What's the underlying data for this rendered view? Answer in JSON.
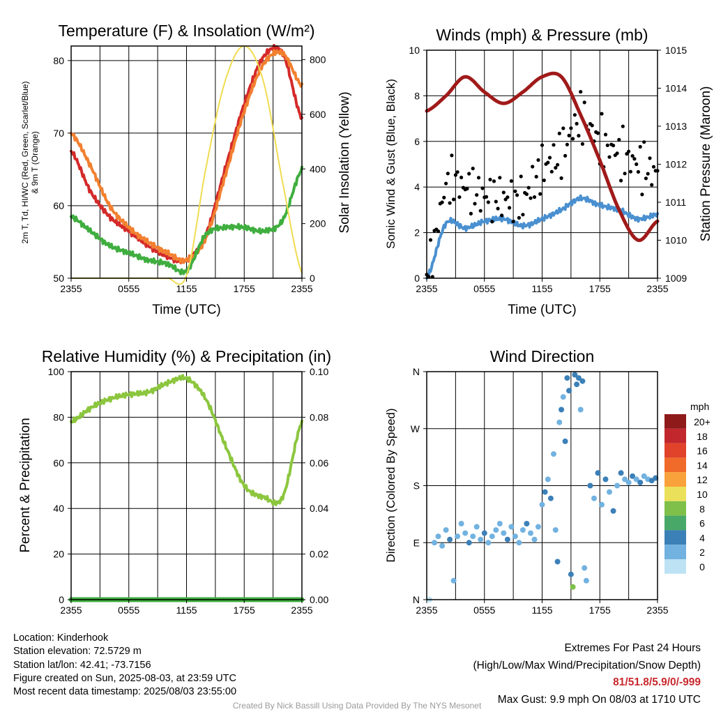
{
  "chart_data": [
    {
      "type": "line",
      "title": "Temperature (F) & Insolation (W/m²)",
      "xlabel": "Time (UTC)",
      "ylabel": "2m T, Td, HI/WC (Red, Green, Scarlet/Blue) & 9m T (Orange)",
      "y2label": "Solar Insolation (Yellow)",
      "x_ticks": [
        "2355",
        "0555",
        "1155",
        "1755",
        "2355"
      ],
      "x": [
        0,
        2,
        4,
        6,
        8,
        10,
        12,
        14,
        16,
        18,
        20,
        22,
        24
      ],
      "ylim": [
        50,
        82
      ],
      "y_ticks": [
        50,
        60,
        70,
        80
      ],
      "y2lim": [
        0,
        850
      ],
      "y2_ticks": [
        0,
        200,
        400,
        600,
        800
      ],
      "grid": true,
      "series": [
        {
          "color": "#d42a2a",
          "axis": "left",
          "values": [
            67.5,
            62,
            58.5,
            56.5,
            54.5,
            53,
            52.5,
            56,
            65,
            74,
            80.5,
            81,
            72
          ]
        },
        {
          "color": "#f28030",
          "axis": "left",
          "values": [
            70,
            65.5,
            60,
            57,
            55,
            53.5,
            52.5,
            55.5,
            64,
            73,
            79.5,
            81,
            76.5
          ]
        },
        {
          "color": "#3fae3f",
          "axis": "left",
          "values": [
            58.5,
            56.5,
            54.5,
            53.5,
            52.5,
            52,
            51,
            56,
            57,
            57,
            56.5,
            58,
            65
          ]
        },
        {
          "color": "#f0dc50",
          "axis": "right",
          "values": [
            0,
            0,
            0,
            0,
            0,
            0,
            10,
            400,
            720,
            850,
            720,
            350,
            20
          ]
        }
      ]
    },
    {
      "type": "line",
      "title": "Winds (mph) & Pressure (mb)",
      "xlabel": "Time (UTC)",
      "ylabel": "Sonic Wind & Gust (Blue, Black)",
      "y2label": "Station Pressure (Maroon)",
      "x_ticks": [
        "2355",
        "0555",
        "1155",
        "1755",
        "2355"
      ],
      "x": [
        0,
        2,
        4,
        6,
        8,
        10,
        12,
        14,
        16,
        18,
        20,
        22,
        24
      ],
      "ylim": [
        0,
        10
      ],
      "y_ticks": [
        0,
        2,
        4,
        6,
        8,
        10
      ],
      "y2lim": [
        1009,
        1015
      ],
      "y2_ticks": [
        1009,
        1010,
        1011,
        1012,
        1013,
        1014,
        1015
      ],
      "grid": true,
      "series": [
        {
          "color": "#4a90d0",
          "axis": "left",
          "values": [
            0,
            2.4,
            2.2,
            2.5,
            2.6,
            2.3,
            2.6,
            3.0,
            3.5,
            3.2,
            3.0,
            2.6,
            2.8
          ]
        },
        {
          "color": "#000000",
          "axis": "left",
          "style": "points",
          "values": [
            0,
            4.0,
            4.0,
            3.6,
            3.5,
            3.5,
            4.8,
            5.5,
            7.0,
            6.0,
            5.5,
            5.0,
            4.6
          ]
        },
        {
          "color": "#a01a1a",
          "axis": "right",
          "values": [
            1013.4,
            1013.8,
            1014.3,
            1013.9,
            1013.6,
            1013.9,
            1014.3,
            1014.3,
            1013.3,
            1012.1,
            1010.8,
            1010.0,
            1010.5
          ]
        }
      ]
    },
    {
      "type": "line",
      "title": "Relative Humidity (%) & Precipitation (in)",
      "xlabel": "",
      "ylabel": "Percent & Precipitation",
      "x_ticks": [
        "2355",
        "0555",
        "1155",
        "1755",
        "2355"
      ],
      "x": [
        0,
        2,
        4,
        6,
        8,
        10,
        12,
        14,
        16,
        18,
        20,
        22,
        24
      ],
      "ylim": [
        0,
        100
      ],
      "y_ticks": [
        0,
        20,
        40,
        60,
        80,
        100
      ],
      "y2lim": [
        0,
        0.1
      ],
      "y2_ticks": [
        "0.00",
        "0.02",
        "0.04",
        "0.06",
        "0.08",
        "0.10"
      ],
      "grid": true,
      "series": [
        {
          "color": "#8cc63e",
          "axis": "left",
          "values": [
            78,
            84,
            88,
            90,
            91,
            95,
            97,
            88,
            68,
            50,
            45,
            45,
            78
          ]
        },
        {
          "color": "#3fae3f",
          "axis": "right",
          "values": [
            0,
            0,
            0,
            0,
            0,
            0,
            0,
            0,
            0,
            0,
            0,
            0,
            0
          ]
        }
      ]
    },
    {
      "type": "scatter",
      "title": "Wind Direction",
      "xlabel": "",
      "ylabel": "Direction (Colored By Speed)",
      "x_ticks": [
        "2355",
        "0555",
        "1155",
        "1755",
        "2355"
      ],
      "y_ticks": [
        "N",
        "E",
        "S",
        "W",
        "N"
      ],
      "ylim": [
        0,
        360
      ],
      "grid": true,
      "legend": {
        "title": "mph",
        "placement": "right",
        "labels": [
          "20+",
          "18",
          "16",
          "14",
          "12",
          "10",
          "8",
          "6",
          "4",
          "2",
          "0"
        ],
        "colors": [
          "#8e1a1a",
          "#c2272d",
          "#e0422a",
          "#f06b2a",
          "#f9a13a",
          "#ebe05a",
          "#7fc04a",
          "#48a868",
          "#3c80b8",
          "#72b2e0",
          "#bde2f4"
        ]
      },
      "points": [
        {
          "x": 0.3,
          "dir": 0,
          "speed": 0.5
        },
        {
          "x": 0.8,
          "dir": 90,
          "speed": 2
        },
        {
          "x": 1.2,
          "dir": 100,
          "speed": 1
        },
        {
          "x": 1.6,
          "dir": 85,
          "speed": 2
        },
        {
          "x": 2.0,
          "dir": 110,
          "speed": 2
        },
        {
          "x": 2.4,
          "dir": 95,
          "speed": 3
        },
        {
          "x": 2.8,
          "dir": 30,
          "speed": 1
        },
        {
          "x": 3.2,
          "dir": 100,
          "speed": 2
        },
        {
          "x": 3.6,
          "dir": 120,
          "speed": 2
        },
        {
          "x": 4.0,
          "dir": 105,
          "speed": 2
        },
        {
          "x": 4.4,
          "dir": 90,
          "speed": 3
        },
        {
          "x": 4.8,
          "dir": 100,
          "speed": 2
        },
        {
          "x": 5.2,
          "dir": 115,
          "speed": 2
        },
        {
          "x": 5.6,
          "dir": 95,
          "speed": 2
        },
        {
          "x": 6.0,
          "dir": 105,
          "speed": 3
        },
        {
          "x": 6.4,
          "dir": 90,
          "speed": 2
        },
        {
          "x": 6.8,
          "dir": 100,
          "speed": 2
        },
        {
          "x": 7.2,
          "dir": 110,
          "speed": 2
        },
        {
          "x": 7.6,
          "dir": 120,
          "speed": 2
        },
        {
          "x": 8.0,
          "dir": 105,
          "speed": 2
        },
        {
          "x": 8.4,
          "dir": 95,
          "speed": 3
        },
        {
          "x": 8.8,
          "dir": 115,
          "speed": 2
        },
        {
          "x": 9.2,
          "dir": 100,
          "speed": 2
        },
        {
          "x": 9.6,
          "dir": 90,
          "speed": 2
        },
        {
          "x": 10.0,
          "dir": 110,
          "speed": 2
        },
        {
          "x": 10.4,
          "dir": 120,
          "speed": 3
        },
        {
          "x": 10.8,
          "dir": 105,
          "speed": 2
        },
        {
          "x": 11.2,
          "dir": 95,
          "speed": 2
        },
        {
          "x": 11.6,
          "dir": 115,
          "speed": 2
        },
        {
          "x": 12.0,
          "dir": 150,
          "speed": 2
        },
        {
          "x": 12.3,
          "dir": 170,
          "speed": 3
        },
        {
          "x": 12.6,
          "dir": 190,
          "speed": 2
        },
        {
          "x": 12.9,
          "dir": 160,
          "speed": 4
        },
        {
          "x": 13.2,
          "dir": 230,
          "speed": 2
        },
        {
          "x": 13.4,
          "dir": 110,
          "speed": 2
        },
        {
          "x": 13.6,
          "dir": 60,
          "speed": 3
        },
        {
          "x": 13.8,
          "dir": 280,
          "speed": 2
        },
        {
          "x": 14.0,
          "dir": 300,
          "speed": 3
        },
        {
          "x": 14.2,
          "dir": 320,
          "speed": 2
        },
        {
          "x": 14.4,
          "dir": 250,
          "speed": 3
        },
        {
          "x": 14.6,
          "dir": 350,
          "speed": 3
        },
        {
          "x": 14.8,
          "dir": 330,
          "speed": 4
        },
        {
          "x": 15.0,
          "dir": 40,
          "speed": 3
        },
        {
          "x": 15.2,
          "dir": 20,
          "speed": 7
        },
        {
          "x": 15.4,
          "dir": 355,
          "speed": 4
        },
        {
          "x": 15.6,
          "dir": 340,
          "speed": 3
        },
        {
          "x": 15.8,
          "dir": 350,
          "speed": 3
        },
        {
          "x": 16.0,
          "dir": 300,
          "speed": 2
        },
        {
          "x": 16.2,
          "dir": 345,
          "speed": 3
        },
        {
          "x": 16.4,
          "dir": 50,
          "speed": 2
        },
        {
          "x": 16.6,
          "dir": 30,
          "speed": 1
        },
        {
          "x": 17.0,
          "dir": 180,
          "speed": 3
        },
        {
          "x": 17.4,
          "dir": 160,
          "speed": 2
        },
        {
          "x": 17.8,
          "dir": 200,
          "speed": 3
        },
        {
          "x": 18.2,
          "dir": 150,
          "speed": 2
        },
        {
          "x": 18.6,
          "dir": 190,
          "speed": 4
        },
        {
          "x": 19.0,
          "dir": 170,
          "speed": 2
        },
        {
          "x": 19.4,
          "dir": 140,
          "speed": 3
        },
        {
          "x": 19.8,
          "dir": 180,
          "speed": 2
        },
        {
          "x": 20.2,
          "dir": 200,
          "speed": 3
        },
        {
          "x": 20.6,
          "dir": 190,
          "speed": 2
        },
        {
          "x": 21.0,
          "dir": 185,
          "speed": 2
        },
        {
          "x": 21.4,
          "dir": 195,
          "speed": 3
        },
        {
          "x": 21.8,
          "dir": 190,
          "speed": 2
        },
        {
          "x": 22.2,
          "dir": 185,
          "speed": 3
        },
        {
          "x": 22.6,
          "dir": 195,
          "speed": 2
        },
        {
          "x": 23.0,
          "dir": 190,
          "speed": 2
        },
        {
          "x": 23.4,
          "dir": 188,
          "speed": 3
        },
        {
          "x": 23.8,
          "dir": 192,
          "speed": 3
        }
      ]
    }
  ],
  "info": {
    "location": "Location: Kinderhook",
    "elevation": "Station elevation: 72.5729 m",
    "latlon": "Station lat/lon: 42.41; -73.7156",
    "created": "Figure created on Sun, 2025-08-03, at 23:59 UTC",
    "recent": "Most recent data timestamp: 2025/08/03 23:55:00"
  },
  "extremes": {
    "title": "Extremes For Past 24 Hours",
    "subtitle": "(High/Low/Max Wind/Precipitation/Snow Depth)",
    "values": "81/51.8/5.9/0/-999",
    "max_gust": "Max Gust: 9.9 mph On 08/03 at 1710 UTC"
  },
  "credit": "Created By Nick Bassill Using Data Provided By The NYS Mesonet"
}
